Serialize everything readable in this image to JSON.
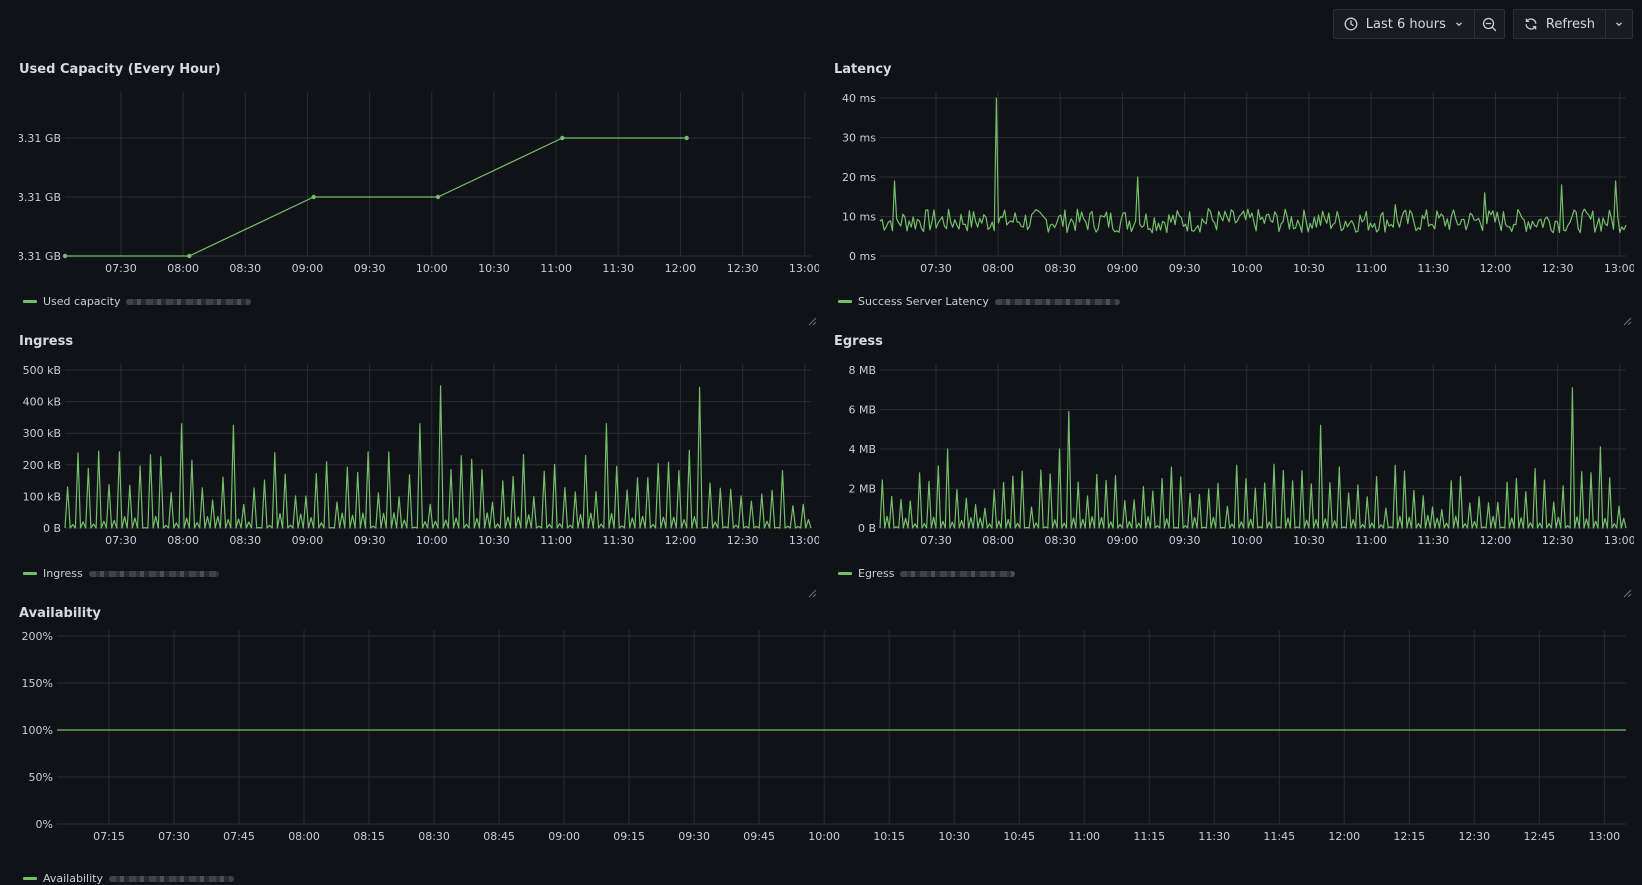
{
  "toolbar": {
    "time_range_label": "Last 6 hours",
    "refresh_label": "Refresh"
  },
  "colors": {
    "series": "#73bf69",
    "grid": "#2a2c31",
    "axis_text": "#ccccdc"
  },
  "chart_data": [
    {
      "id": "used",
      "type": "line",
      "title": "Used Capacity (Every Hour)",
      "x_ticks": [
        "07:30",
        "08:00",
        "08:30",
        "09:00",
        "09:30",
        "10:00",
        "10:30",
        "11:00",
        "11:30",
        "12:00",
        "12:30",
        "13:00"
      ],
      "y_ticks": [
        "3.31 GB",
        "3.31 GB",
        "3.31 GB"
      ],
      "y_levels": [
        0,
        0.5,
        1
      ],
      "legend": "Used capacity",
      "x_range": [
        "07:03",
        "13:03"
      ],
      "series": [
        {
          "x": [
            "07:03",
            "08:03",
            "09:03",
            "10:03",
            "11:03",
            "12:03"
          ],
          "y": [
            0,
            0,
            0.5,
            0.5,
            1,
            1
          ],
          "points": true
        }
      ]
    },
    {
      "id": "latency",
      "type": "line",
      "title": "Latency",
      "x_ticks": [
        "07:30",
        "08:00",
        "08:30",
        "09:00",
        "09:30",
        "10:00",
        "10:30",
        "11:00",
        "11:30",
        "12:00",
        "12:30",
        "13:00"
      ],
      "y_ticks": [
        "0 ms",
        "10 ms",
        "20 ms",
        "30 ms",
        "40 ms"
      ],
      "y_levels": [
        0,
        10,
        20,
        30,
        40
      ],
      "ylim": [
        0,
        40
      ],
      "legend": "Success Server Latency",
      "x_range": [
        "07:03",
        "13:03"
      ],
      "series": [
        {
          "generator": "noise",
          "base": 8,
          "amp": 6,
          "n": 360,
          "seed": 7,
          "spikes": [
            [
              0.02,
              19
            ],
            [
              0.155,
              40
            ],
            [
              0.345,
              20
            ],
            [
              0.81,
              16
            ],
            [
              0.915,
              18
            ],
            [
              0.985,
              19
            ],
            [
              0.44,
              12
            ],
            [
              0.69,
              13
            ]
          ]
        }
      ]
    },
    {
      "id": "ingress",
      "type": "line",
      "title": "Ingress",
      "x_ticks": [
        "07:30",
        "08:00",
        "08:30",
        "09:00",
        "09:30",
        "10:00",
        "10:30",
        "11:00",
        "11:30",
        "12:00",
        "12:30",
        "13:00"
      ],
      "y_ticks": [
        "0 B",
        "100 kB",
        "200 kB",
        "300 kB",
        "400 kB",
        "500 kB"
      ],
      "y_levels": [
        0,
        100,
        200,
        300,
        400,
        500
      ],
      "ylim": [
        0,
        500
      ],
      "legend": "Ingress",
      "x_range": [
        "07:03",
        "13:03"
      ],
      "series": [
        {
          "generator": "pulses",
          "base": 0,
          "amp": 200,
          "count": 72,
          "seed": 3,
          "spikes": [
            [
              0.5,
              450
            ],
            [
              0.85,
              445
            ],
            [
              0.48,
              330
            ],
            [
              0.16,
              330
            ],
            [
              0.22,
              325
            ],
            [
              0.73,
              330
            ]
          ]
        }
      ]
    },
    {
      "id": "egress",
      "type": "line",
      "title": "Egress",
      "x_ticks": [
        "07:30",
        "08:00",
        "08:30",
        "09:00",
        "09:30",
        "10:00",
        "10:30",
        "11:00",
        "11:30",
        "12:00",
        "12:30",
        "13:00"
      ],
      "y_ticks": [
        "0 B",
        "2 MB",
        "4 MB",
        "6 MB",
        "8 MB"
      ],
      "y_levels": [
        0,
        2,
        4,
        6,
        8
      ],
      "ylim": [
        0,
        8
      ],
      "legend": "Egress",
      "x_range": [
        "07:03",
        "13:03"
      ],
      "series": [
        {
          "generator": "pulses",
          "base": 0,
          "amp": 2.6,
          "count": 80,
          "seed": 11,
          "spikes": [
            [
              0.25,
              5.9
            ],
            [
              0.235,
              4
            ],
            [
              0.59,
              5.2
            ],
            [
              0.93,
              7.1
            ],
            [
              0.965,
              4.1
            ],
            [
              0.09,
              4
            ]
          ]
        }
      ]
    },
    {
      "id": "avail",
      "type": "line",
      "title": "Availability",
      "x_ticks": [
        "07:15",
        "07:30",
        "07:45",
        "08:00",
        "08:15",
        "08:30",
        "08:45",
        "09:00",
        "09:15",
        "09:30",
        "09:45",
        "10:00",
        "10:15",
        "10:30",
        "10:45",
        "11:00",
        "11:15",
        "11:30",
        "11:45",
        "12:00",
        "12:15",
        "12:30",
        "12:45",
        "13:00"
      ],
      "y_ticks": [
        "0%",
        "50%",
        "100%",
        "150%",
        "200%"
      ],
      "y_levels": [
        0,
        50,
        100,
        150,
        200
      ],
      "ylim": [
        0,
        200
      ],
      "legend": "Availability",
      "x_range": [
        "07:03",
        "13:05"
      ],
      "series": [
        {
          "x": [
            "07:03",
            "13:05"
          ],
          "y": [
            100,
            100
          ]
        }
      ]
    }
  ]
}
